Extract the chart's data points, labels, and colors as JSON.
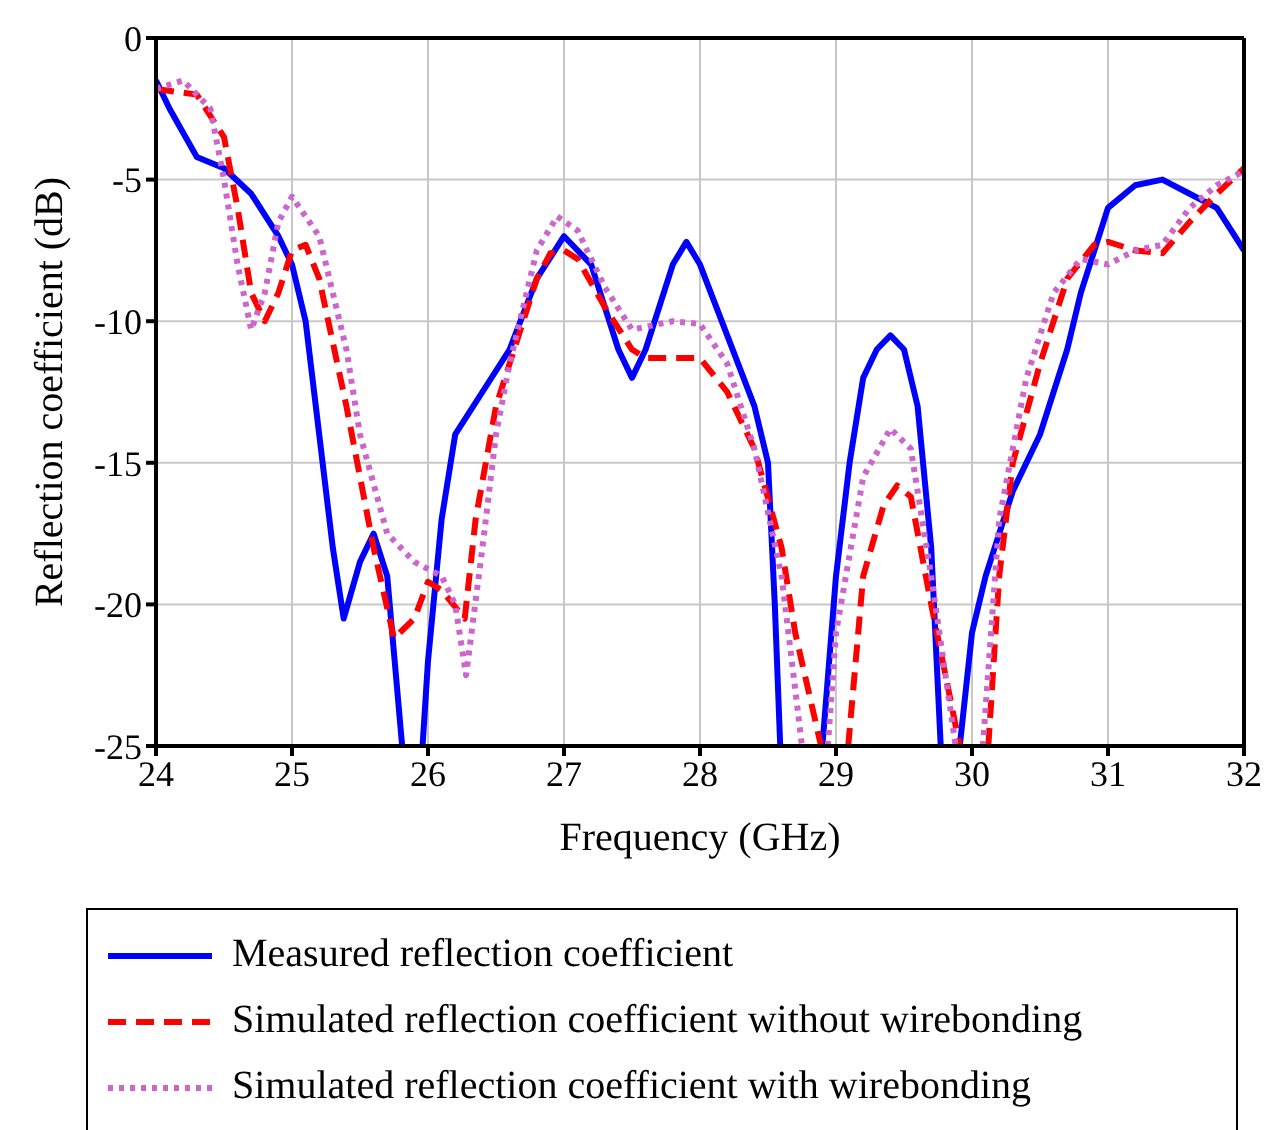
{
  "chart_data": {
    "type": "line",
    "xlabel": "Frequency (GHz)",
    "ylabel": "Reflection coefficient (dB)",
    "xlim": [
      24,
      32
    ],
    "xticks": [
      24,
      25,
      26,
      27,
      28,
      29,
      30,
      31,
      32
    ],
    "ylim": [
      -25,
      0
    ],
    "yticks": [
      -25,
      -20,
      -15,
      -10,
      -5,
      0
    ],
    "grid": true,
    "legend": "bottom",
    "marker": "none",
    "series": [
      {
        "name": "Measured reflection coefficient",
        "color": "#0000ff",
        "line_style": "solid",
        "x": [
          24.0,
          24.1,
          24.3,
          24.5,
          24.7,
          24.9,
          25.0,
          25.1,
          25.2,
          25.3,
          25.38,
          25.5,
          25.6,
          25.7,
          25.81,
          25.88,
          25.96,
          26.0,
          26.1,
          26.2,
          26.4,
          26.6,
          26.8,
          27.0,
          27.2,
          27.4,
          27.5,
          27.6,
          27.8,
          27.9,
          28.0,
          28.2,
          28.4,
          28.5,
          28.55,
          28.59,
          28.75,
          28.9,
          29.0,
          29.1,
          29.2,
          29.3,
          29.4,
          29.5,
          29.6,
          29.7,
          29.77,
          29.84,
          29.91,
          30.0,
          30.1,
          30.3,
          30.5,
          30.7,
          30.8,
          30.9,
          31.0,
          31.2,
          31.4,
          31.6,
          31.8,
          32.0
        ],
        "values": [
          -1.5,
          -2.5,
          -4.2,
          -4.6,
          -5.5,
          -7.0,
          -8.0,
          -10,
          -14,
          -18,
          -20.5,
          -18.5,
          -17.5,
          -19,
          -25,
          null,
          -25,
          -22,
          -17,
          -14,
          -12.5,
          -11,
          -8.5,
          -7.0,
          -8,
          -11,
          -12,
          -11,
          -8,
          -7.2,
          -8,
          -10.5,
          -13,
          -15,
          -20,
          -25,
          null,
          -25,
          -19,
          -15,
          -12,
          -11,
          -10.5,
          -11,
          -13,
          -18,
          -25,
          null,
          -25,
          -21,
          -19,
          -16,
          -14,
          -11,
          -9,
          -7.5,
          -6.0,
          -5.2,
          -5.0,
          -5.5,
          -6.0,
          -7.5
        ]
      },
      {
        "name": "Simulated reflection coefficient without wirebonding",
        "color": "#ff0000",
        "line_style": "dashed",
        "x": [
          24.0,
          24.3,
          24.5,
          24.6,
          24.7,
          24.8,
          24.9,
          25.0,
          25.1,
          25.2,
          25.4,
          25.6,
          25.75,
          25.9,
          26.0,
          26.1,
          26.27,
          26.35,
          26.5,
          26.6,
          26.8,
          26.9,
          27.0,
          27.1,
          27.3,
          27.5,
          27.6,
          27.8,
          28.0,
          28.2,
          28.4,
          28.6,
          28.7,
          28.89,
          29.0,
          29.09,
          29.2,
          29.35,
          29.45,
          29.55,
          29.7,
          29.91,
          30.0,
          30.12,
          30.2,
          30.3,
          30.5,
          30.7,
          30.9,
          31.0,
          31.2,
          31.4,
          31.6,
          31.8,
          32.0
        ],
        "values": [
          -1.8,
          -2,
          -3.5,
          -6,
          -9,
          -10,
          -9,
          -7.5,
          -7.3,
          -8.5,
          -13,
          -18,
          -21.2,
          -20.5,
          -19.2,
          -19.5,
          -20.5,
          -17,
          -13,
          -11.5,
          -8.5,
          -7.6,
          -7.5,
          -7.8,
          -9.5,
          -11,
          -11.3,
          -11.3,
          -11.3,
          -12.5,
          -14.5,
          -18,
          -21,
          -25,
          null,
          -25,
          -19,
          -16.5,
          -15.8,
          -16.2,
          -20,
          -25,
          null,
          -25,
          -19,
          -15,
          -11.5,
          -8.5,
          -7.3,
          -7.2,
          -7.5,
          -7.6,
          -6.5,
          -5.5,
          -4.6
        ]
      },
      {
        "name": "Simulated reflection coefficient with wirebonding",
        "color": "#cc66cc",
        "line_style": "dotted",
        "x": [
          24.0,
          24.2,
          24.4,
          24.5,
          24.6,
          24.7,
          24.8,
          24.9,
          25.0,
          25.2,
          25.4,
          25.5,
          25.7,
          25.9,
          26.1,
          26.2,
          26.28,
          26.4,
          26.5,
          26.6,
          26.8,
          26.95,
          27.1,
          27.3,
          27.5,
          27.8,
          28.0,
          28.2,
          28.4,
          28.6,
          28.75,
          28.85,
          28.94,
          29.0,
          29.2,
          29.4,
          29.55,
          29.7,
          29.88,
          29.98,
          30.08,
          30.2,
          30.4,
          30.6,
          30.8,
          31.0,
          31.2,
          31.4,
          31.6,
          31.8,
          32.0
        ],
        "values": [
          -1.8,
          -1.5,
          -2.5,
          -5,
          -8,
          -10.3,
          -9,
          -6.5,
          -5.6,
          -7,
          -11,
          -14,
          -17.5,
          -18.5,
          -19,
          -20,
          -22.5,
          -18,
          -14,
          -11.5,
          -7.5,
          -6.3,
          -6.8,
          -8.8,
          -10.3,
          -10,
          -10.1,
          -11.5,
          -14.5,
          -19,
          -25,
          null,
          -25,
          -21,
          -15.5,
          -13.8,
          -14.5,
          -19,
          -25,
          null,
          -25,
          -17,
          -12,
          -9,
          -7.8,
          -8.0,
          -7.5,
          -7.3,
          -6,
          -5.2,
          -4.7
        ]
      }
    ]
  }
}
